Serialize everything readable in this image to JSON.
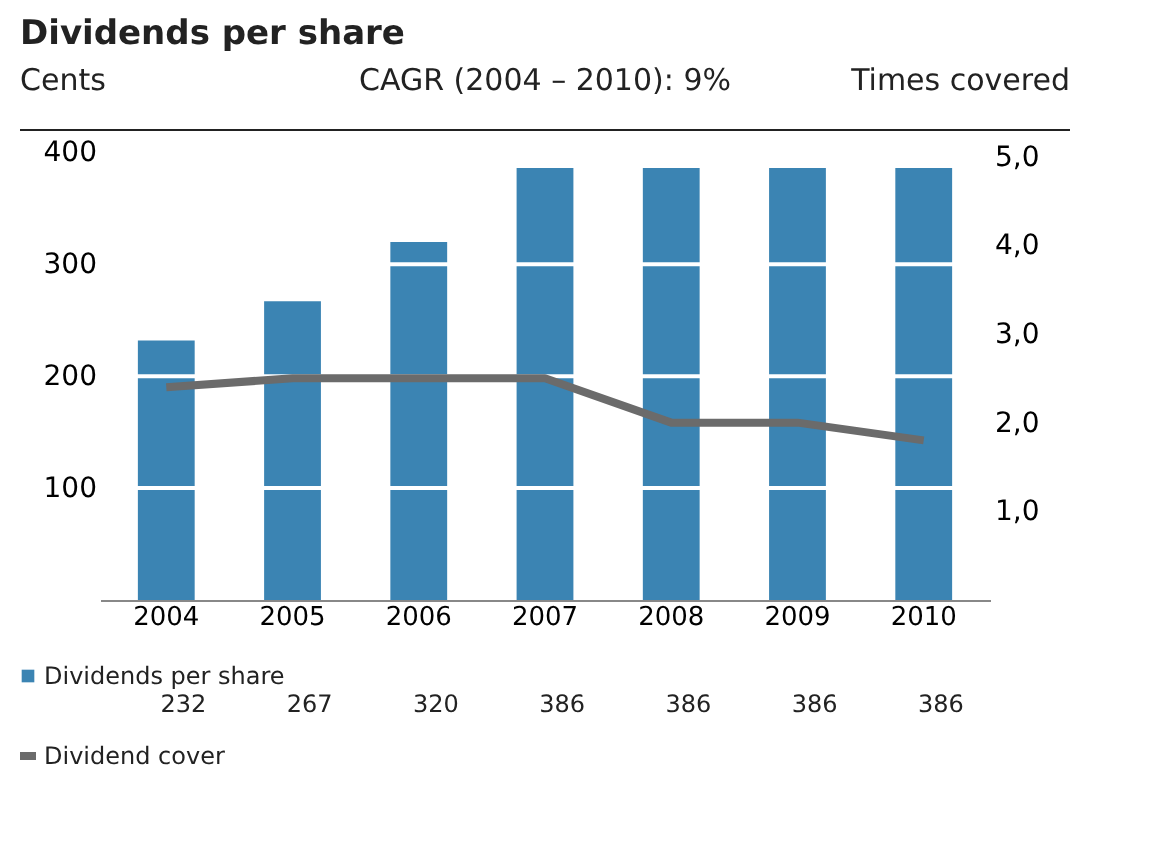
{
  "chart_data": {
    "type": "bar",
    "title": "Dividends per share",
    "ylabel": "Cents",
    "subtitle": "CAGR (2004 – 2010): 9%",
    "y2label": "Times covered",
    "categories": [
      "2004",
      "2005",
      "2006",
      "2007",
      "2008",
      "2009",
      "2010"
    ],
    "series": [
      {
        "name": "Dividends per share",
        "color": "#3b84b3",
        "values": [
          232,
          267,
          320,
          386,
          386,
          386,
          386
        ],
        "value_labels": [
          "232",
          "267",
          "320",
          "386",
          "386",
          "386",
          "386"
        ]
      },
      {
        "name": "Dividend cover",
        "type": "line",
        "axis": "y2",
        "color": "#6b6b6b",
        "values": [
          2.4,
          2.5,
          2.5,
          2.5,
          2.0,
          2.0,
          1.8
        ]
      }
    ],
    "ylim": [
      0,
      420
    ],
    "yticks": [
      100,
      200,
      300,
      400
    ],
    "y2lim": [
      0,
      5.3
    ],
    "y2ticks": [
      {
        "value": 1,
        "label": "1,0"
      },
      {
        "value": 2,
        "label": "2,0"
      },
      {
        "value": 3,
        "label": "3,0"
      },
      {
        "value": 4,
        "label": "4,0"
      },
      {
        "value": 5,
        "label": "5,0"
      }
    ],
    "grid": "y",
    "legend": "bottom",
    "marker": "none",
    "line_style": "solid"
  }
}
